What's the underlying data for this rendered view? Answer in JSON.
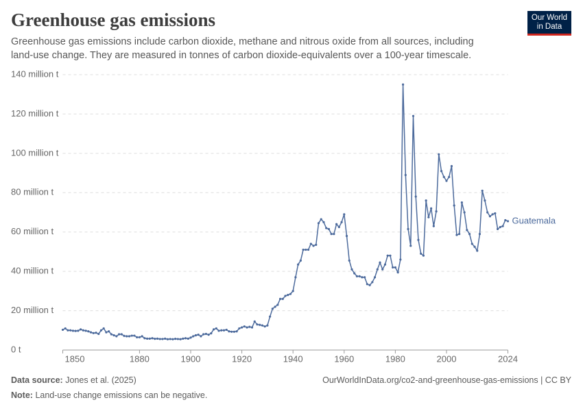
{
  "header": {
    "title": "Greenhouse gas emissions",
    "subtitle": "Greenhouse gas emissions include carbon dioxide, methane and nitrous oxide from all sources, including land-use change. They are measured in tonnes of carbon dioxide-equivalents over a 100-year timescale.",
    "logo": [
      "Our World",
      "in Data"
    ]
  },
  "chart_data": {
    "type": "line",
    "x": [
      1850,
      1851,
      1852,
      1853,
      1854,
      1855,
      1856,
      1857,
      1858,
      1859,
      1860,
      1861,
      1862,
      1863,
      1864,
      1865,
      1866,
      1867,
      1868,
      1869,
      1870,
      1871,
      1872,
      1873,
      1874,
      1875,
      1876,
      1877,
      1878,
      1879,
      1880,
      1881,
      1882,
      1883,
      1884,
      1885,
      1886,
      1887,
      1888,
      1889,
      1890,
      1891,
      1892,
      1893,
      1894,
      1895,
      1896,
      1897,
      1898,
      1899,
      1900,
      1901,
      1902,
      1903,
      1904,
      1905,
      1906,
      1907,
      1908,
      1909,
      1910,
      1911,
      1912,
      1913,
      1914,
      1915,
      1916,
      1917,
      1918,
      1919,
      1920,
      1921,
      1922,
      1923,
      1924,
      1925,
      1926,
      1927,
      1928,
      1929,
      1930,
      1931,
      1932,
      1933,
      1934,
      1935,
      1936,
      1937,
      1938,
      1939,
      1940,
      1941,
      1942,
      1943,
      1944,
      1945,
      1946,
      1947,
      1948,
      1949,
      1950,
      1951,
      1952,
      1953,
      1954,
      1955,
      1956,
      1957,
      1958,
      1959,
      1960,
      1961,
      1962,
      1963,
      1964,
      1965,
      1966,
      1967,
      1968,
      1969,
      1970,
      1971,
      1972,
      1973,
      1974,
      1975,
      1976,
      1977,
      1978,
      1979,
      1980,
      1981,
      1982,
      1983,
      1984,
      1985,
      1986,
      1987,
      1988,
      1989,
      1990,
      1991,
      1992,
      1993,
      1994,
      1995,
      1996,
      1997,
      1998,
      1999,
      2000,
      2001,
      2002,
      2003,
      2004,
      2005,
      2006,
      2007,
      2008,
      2009,
      2010,
      2011,
      2012,
      2013,
      2014,
      2015,
      2016,
      2017,
      2018,
      2019,
      2020,
      2021,
      2022,
      2023,
      2024
    ],
    "series": [
      {
        "name": "Guatemala",
        "color": "#4c6a9c",
        "values": [
          10300000,
          11000000,
          10000000,
          10000000,
          9800000,
          9700000,
          9800000,
          10500000,
          10000000,
          9800000,
          9500000,
          9000000,
          8600000,
          8800000,
          8200000,
          10000000,
          11000000,
          9000000,
          9500000,
          8000000,
          7500000,
          7000000,
          8000000,
          8000000,
          7200000,
          7000000,
          7000000,
          7300000,
          7300000,
          6500000,
          6500000,
          7000000,
          6000000,
          5800000,
          5800000,
          6000000,
          5700000,
          5800000,
          5600000,
          5600000,
          5800000,
          5500000,
          5600000,
          5500000,
          5700000,
          5600000,
          5500000,
          5800000,
          6000000,
          5800000,
          6300000,
          7000000,
          7500000,
          7800000,
          7000000,
          8000000,
          8200000,
          7800000,
          8500000,
          10500000,
          11000000,
          9800000,
          10000000,
          10000000,
          10300000,
          9500000,
          9300000,
          9300000,
          9500000,
          11000000,
          11500000,
          12000000,
          11500000,
          11800000,
          11500000,
          14500000,
          13000000,
          12800000,
          12500000,
          12000000,
          12500000,
          17000000,
          21000000,
          22000000,
          23000000,
          26000000,
          26000000,
          27500000,
          28000000,
          28500000,
          30000000,
          37000000,
          43500000,
          45500000,
          51000000,
          51000000,
          51000000,
          54000000,
          53000000,
          53500000,
          64500000,
          66500000,
          65000000,
          62000000,
          61500000,
          59000000,
          59000000,
          64000000,
          62500000,
          65000000,
          69000000,
          58000000,
          45500000,
          41000000,
          39000000,
          37500000,
          37500000,
          37000000,
          37000000,
          33500000,
          33000000,
          34500000,
          37000000,
          41000000,
          44500000,
          41000000,
          43500000,
          48000000,
          48000000,
          42000000,
          42000000,
          39500000,
          46000000,
          135000000,
          89000000,
          61500000,
          53000000,
          119000000,
          78000000,
          56000000,
          49000000,
          48000000,
          76000000,
          67500000,
          72000000,
          63000000,
          70500000,
          99500000,
          91000000,
          88000000,
          86000000,
          88000000,
          93500000,
          73500000,
          58500000,
          59000000,
          75000000,
          70000000,
          61000000,
          59000000,
          54000000,
          52500000,
          50500000,
          59000000,
          81000000,
          76000000,
          70000000,
          68000000,
          69000000,
          69500000,
          61500000,
          62500000,
          63000000,
          66000000,
          65500000
        ]
      }
    ],
    "xlim": [
      1850,
      2024
    ],
    "xticks": [
      1850,
      1880,
      1900,
      1920,
      1940,
      1960,
      1980,
      2000,
      2024
    ],
    "ylim": [
      0,
      140000000
    ],
    "yticks": [
      {
        "value": 0,
        "label": "0 t"
      },
      {
        "value": 20000000,
        "label": "20 million t"
      },
      {
        "value": 40000000,
        "label": "40 million t"
      },
      {
        "value": 60000000,
        "label": "60 million t"
      },
      {
        "value": 80000000,
        "label": "80 million t"
      },
      {
        "value": 100000000,
        "label": "100 million t"
      },
      {
        "value": 120000000,
        "label": "120 million t"
      },
      {
        "value": 140000000,
        "label": "140 million t"
      }
    ],
    "grid": true
  },
  "footer": {
    "source_label": "Data source:",
    "source": "Jones et al. (2025)",
    "url": "OurWorldInData.org/co2-and-greenhouse-gas-emissions | CC BY",
    "note_label": "Note:",
    "note": "Land-use change emissions can be negative."
  }
}
